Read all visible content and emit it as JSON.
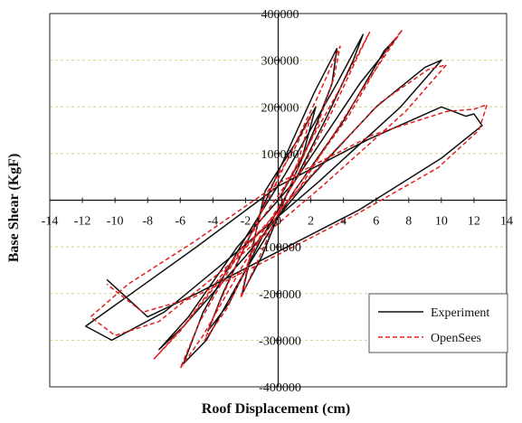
{
  "chart_data": {
    "type": "line",
    "title": "",
    "xlabel": "Roof Displacement (cm)",
    "ylabel": "Base Shear (KgF)",
    "xlim": [
      -14,
      14
    ],
    "ylim": [
      -400000,
      400000
    ],
    "x_ticks": [
      -14,
      -12,
      -10,
      -8,
      -6,
      -4,
      -2,
      0,
      2,
      4,
      6,
      8,
      10,
      12,
      14
    ],
    "y_ticks": [
      -400000,
      -300000,
      -200000,
      -100000,
      0,
      100000,
      200000,
      300000,
      400000
    ],
    "x_tick_labels": [
      "-14",
      "-12",
      "-10",
      "-8",
      "-6",
      "-4",
      "-2",
      "0",
      "2",
      "4",
      "6",
      "8",
      "10",
      "12",
      "14"
    ],
    "y_tick_labels": [
      "-400000",
      "-300000",
      "-200000",
      "-100000",
      "0",
      "100000",
      "200000",
      "300000",
      "400000"
    ],
    "grid": {
      "horizontal": true,
      "vertical": false,
      "style": "dashed"
    },
    "legend": {
      "placement": "bottom-right"
    },
    "series": [
      {
        "name": "Experiment",
        "color": "#111111",
        "style": "solid",
        "points": [
          [
            0,
            0
          ],
          [
            1.5,
            95000
          ],
          [
            2.3,
            200000
          ],
          [
            1.2,
            130000
          ],
          [
            -0.8,
            20000
          ],
          [
            -1.5,
            -90000
          ],
          [
            -2.2,
            -200000
          ],
          [
            -1.0,
            -120000
          ],
          [
            0.5,
            10000
          ],
          [
            2.2,
            150000
          ],
          [
            3.3,
            250000
          ],
          [
            3.6,
            325000
          ],
          [
            2.2,
            230000
          ],
          [
            0,
            60000
          ],
          [
            -1.5,
            -60000
          ],
          [
            -3.4,
            -200000
          ],
          [
            -4.3,
            -280000
          ],
          [
            -3.0,
            -220000
          ],
          [
            -1.0,
            -80000
          ],
          [
            1.0,
            40000
          ],
          [
            3.0,
            180000
          ],
          [
            4.6,
            300000
          ],
          [
            5.2,
            355000
          ],
          [
            3.6,
            250000
          ],
          [
            0.5,
            60000
          ],
          [
            -2.0,
            -80000
          ],
          [
            -4.6,
            -240000
          ],
          [
            -5.8,
            -350000
          ],
          [
            -4.4,
            -300000
          ],
          [
            -2.0,
            -150000
          ],
          [
            1.0,
            20000
          ],
          [
            4.0,
            170000
          ],
          [
            6.5,
            320000
          ],
          [
            7.3,
            350000
          ],
          [
            5.0,
            250000
          ],
          [
            1.0,
            40000
          ],
          [
            -2.5,
            -100000
          ],
          [
            -5.5,
            -250000
          ],
          [
            -7.3,
            -320000
          ],
          [
            -5.8,
            -270000
          ],
          [
            -2.0,
            -120000
          ],
          [
            2.0,
            50000
          ],
          [
            6.0,
            200000
          ],
          [
            9.0,
            285000
          ],
          [
            10.0,
            300000
          ],
          [
            7.5,
            200000
          ],
          [
            2.5,
            40000
          ],
          [
            -2.5,
            -110000
          ],
          [
            -7.0,
            -240000
          ],
          [
            -10.2,
            -300000
          ],
          [
            -11.8,
            -270000
          ],
          [
            -9.0,
            -200000
          ],
          [
            -5.0,
            -100000
          ],
          [
            0,
            30000
          ],
          [
            5.5,
            130000
          ],
          [
            10.0,
            200000
          ],
          [
            11.5,
            180000
          ],
          [
            12.0,
            185000
          ],
          [
            12.5,
            160000
          ],
          [
            10.0,
            90000
          ],
          [
            5.0,
            -20000
          ],
          [
            0,
            -110000
          ],
          [
            -5.0,
            -200000
          ],
          [
            -8.0,
            -250000
          ],
          [
            -10.5,
            -170000
          ]
        ]
      },
      {
        "name": "OpenSees",
        "color": "#e02020",
        "style": "dashed",
        "points": [
          [
            0,
            0
          ],
          [
            1.2,
            80000
          ],
          [
            2.0,
            180000
          ],
          [
            1.0,
            110000
          ],
          [
            -0.8,
            10000
          ],
          [
            -1.6,
            -100000
          ],
          [
            -2.3,
            -210000
          ],
          [
            -1.0,
            -110000
          ],
          [
            0.6,
            20000
          ],
          [
            2.4,
            160000
          ],
          [
            3.4,
            260000
          ],
          [
            3.8,
            330000
          ],
          [
            2.4,
            220000
          ],
          [
            0.2,
            60000
          ],
          [
            -1.8,
            -80000
          ],
          [
            -3.6,
            -220000
          ],
          [
            -4.5,
            -300000
          ],
          [
            -3.1,
            -230000
          ],
          [
            -1.0,
            -70000
          ],
          [
            1.2,
            50000
          ],
          [
            3.3,
            190000
          ],
          [
            4.9,
            310000
          ],
          [
            5.6,
            360000
          ],
          [
            3.8,
            240000
          ],
          [
            0.6,
            40000
          ],
          [
            -2.2,
            -100000
          ],
          [
            -4.8,
            -260000
          ],
          [
            -6.0,
            -360000
          ],
          [
            -4.6,
            -290000
          ],
          [
            -2.0,
            -130000
          ],
          [
            1.2,
            30000
          ],
          [
            4.3,
            180000
          ],
          [
            6.8,
            330000
          ],
          [
            7.6,
            365000
          ],
          [
            5.2,
            240000
          ],
          [
            1.2,
            20000
          ],
          [
            -2.6,
            -120000
          ],
          [
            -5.8,
            -270000
          ],
          [
            -7.6,
            -340000
          ],
          [
            -6.0,
            -280000
          ],
          [
            -2.2,
            -110000
          ],
          [
            2.2,
            60000
          ],
          [
            6.3,
            210000
          ],
          [
            9.2,
            280000
          ],
          [
            10.3,
            290000
          ],
          [
            7.8,
            190000
          ],
          [
            2.7,
            30000
          ],
          [
            -2.7,
            -130000
          ],
          [
            -7.3,
            -260000
          ],
          [
            -10.0,
            -290000
          ],
          [
            -11.5,
            -250000
          ],
          [
            -9.2,
            -180000
          ],
          [
            -5.2,
            -90000
          ],
          [
            0.2,
            40000
          ],
          [
            5.8,
            140000
          ],
          [
            10.3,
            190000
          ],
          [
            12.0,
            195000
          ],
          [
            12.8,
            205000
          ],
          [
            12.3,
            150000
          ],
          [
            9.8,
            70000
          ],
          [
            4.8,
            -30000
          ],
          [
            -0.2,
            -120000
          ],
          [
            -5.3,
            -210000
          ],
          [
            -8.3,
            -240000
          ],
          [
            -10.5,
            -180000
          ]
        ]
      }
    ]
  }
}
